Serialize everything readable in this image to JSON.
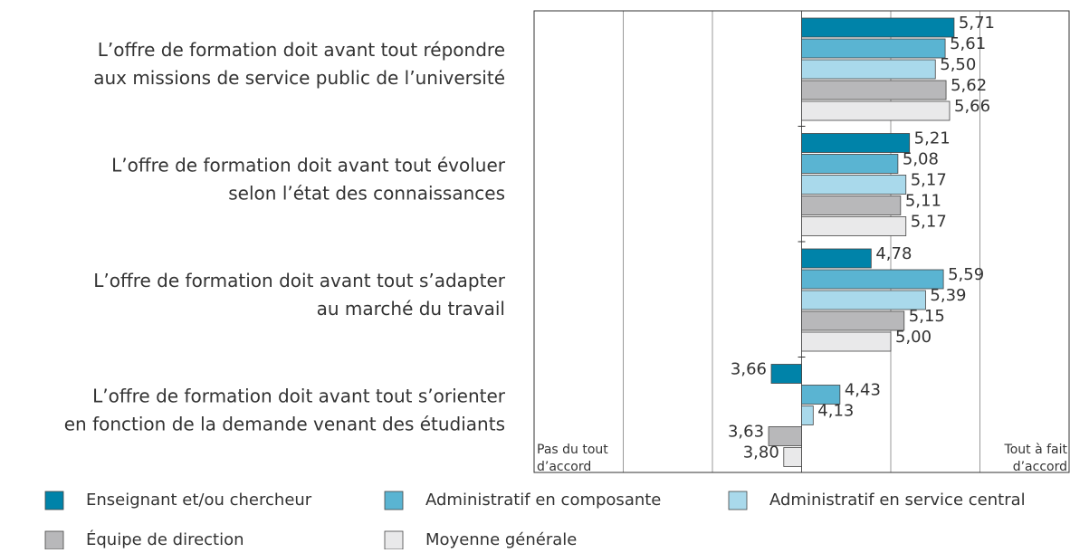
{
  "chart_data": {
    "type": "bar",
    "orientation": "horizontal",
    "baseline": 4,
    "categories": [
      [
        "L’offre de formation doit avant tout répondre",
        "aux missions de service public de l’université"
      ],
      [
        "L’offre de formation doit avant tout évoluer",
        "selon l’état des connaissances"
      ],
      [
        "L’offre de formation doit avant tout s’adapter",
        "au marché du travail"
      ],
      [
        "L’offre de formation doit avant tout s’orienter",
        "en fonction de la demande venant des étudiants"
      ]
    ],
    "series": [
      {
        "name": "Enseignant et/ou chercheur",
        "color": "#0083a9",
        "values": [
          5.71,
          5.21,
          4.78,
          3.66
        ],
        "value_labels": [
          "5,71",
          "5,21",
          "4,78",
          "3,66"
        ]
      },
      {
        "name": "Administratif en composante",
        "color": "#5ab4d2",
        "values": [
          5.61,
          5.08,
          5.59,
          4.43
        ],
        "value_labels": [
          "5,61",
          "5,08",
          "5,59",
          "4,43"
        ]
      },
      {
        "name": "Administratif en service central",
        "color": "#a9d9eb",
        "values": [
          5.5,
          5.17,
          5.39,
          4.13
        ],
        "value_labels": [
          "5,50",
          "5,17",
          "5,39",
          "4,13"
        ]
      },
      {
        "name": "Équipe de direction",
        "color": "#b8b8ba",
        "values": [
          5.62,
          5.11,
          5.15,
          3.63
        ],
        "value_labels": [
          "5,62",
          "5,11",
          "5,15",
          "3,63"
        ]
      },
      {
        "name": "Moyenne générale",
        "color": "#e9e9ea",
        "values": [
          5.66,
          5.17,
          5.0,
          3.8
        ],
        "value_labels": [
          "5,66",
          "5,17",
          "5,00",
          "3,80"
        ]
      }
    ],
    "xlim": [
      1,
      7
    ],
    "xticks": [
      2,
      3,
      4,
      5,
      6
    ],
    "grid": true,
    "axis_left_label": [
      "Pas du tout",
      "d’accord"
    ],
    "axis_right_label": [
      "Tout à fait",
      "d’accord"
    ]
  }
}
